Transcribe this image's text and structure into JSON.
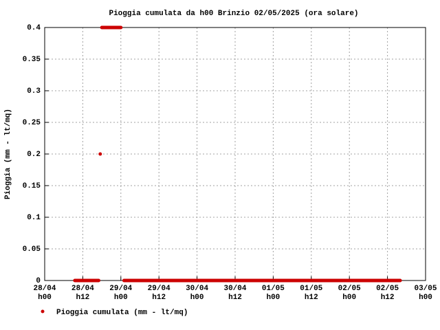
{
  "chart_data": {
    "type": "line",
    "title": "Pioggia cumulata da h00 Brinzio 02/05/2025 (ora solare)",
    "y_label": "Pioggia (mm - lt/mq)",
    "x": [
      9.5,
      10.5,
      11.5,
      12.5,
      13.5,
      14.5,
      15.5,
      16.5,
      17,
      null,
      17.5,
      null,
      18,
      19,
      20,
      21,
      22,
      23,
      24,
      null,
      25,
      27,
      29,
      31,
      33,
      35,
      37,
      39,
      41,
      43,
      45,
      47,
      49,
      51,
      53,
      55,
      57,
      59,
      61,
      63,
      65,
      67,
      69,
      71,
      73,
      75,
      77,
      79,
      81,
      83,
      85,
      87,
      89,
      91,
      93,
      95,
      97,
      99,
      101,
      103,
      105,
      107,
      109,
      111,
      112
    ],
    "series": [
      {
        "name": "Pioggia cumulata (mm - lt/mq)",
        "color": "#cc0000",
        "values": [
          0,
          0,
          0,
          0,
          0,
          0,
          0,
          0,
          0,
          null,
          0.2,
          null,
          0.4,
          0.4,
          0.4,
          0.4,
          0.4,
          0.4,
          0.4,
          null,
          0,
          0,
          0,
          0,
          0,
          0,
          0,
          0,
          0,
          0,
          0,
          0,
          0,
          0,
          0,
          0,
          0,
          0,
          0,
          0,
          0,
          0,
          0,
          0,
          0,
          0,
          0,
          0,
          0,
          0,
          0,
          0,
          0,
          0,
          0,
          0,
          0,
          0,
          0,
          0,
          0,
          0,
          0,
          0,
          0
        ]
      }
    ],
    "xlim": [
      0,
      120
    ],
    "xticks": [
      {
        "value": 0,
        "label": "28/04\nh00"
      },
      {
        "value": 12,
        "label": "28/04\nh12"
      },
      {
        "value": 24,
        "label": "29/04\nh00"
      },
      {
        "value": 36,
        "label": "29/04\nh12"
      },
      {
        "value": 48,
        "label": "30/04\nh00"
      },
      {
        "value": 60,
        "label": "30/04\nh12"
      },
      {
        "value": 72,
        "label": "01/05\nh00"
      },
      {
        "value": 84,
        "label": "01/05\nh12"
      },
      {
        "value": 96,
        "label": "02/05\nh00"
      },
      {
        "value": 108,
        "label": "02/05\nh12"
      },
      {
        "value": 120,
        "label": "03/05\nh00"
      }
    ],
    "ylim": [
      0,
      0.4
    ],
    "yticks": [
      0,
      0.05,
      0.1,
      0.15,
      0.2,
      0.25,
      0.3,
      0.35,
      0.4
    ],
    "grid": true
  }
}
